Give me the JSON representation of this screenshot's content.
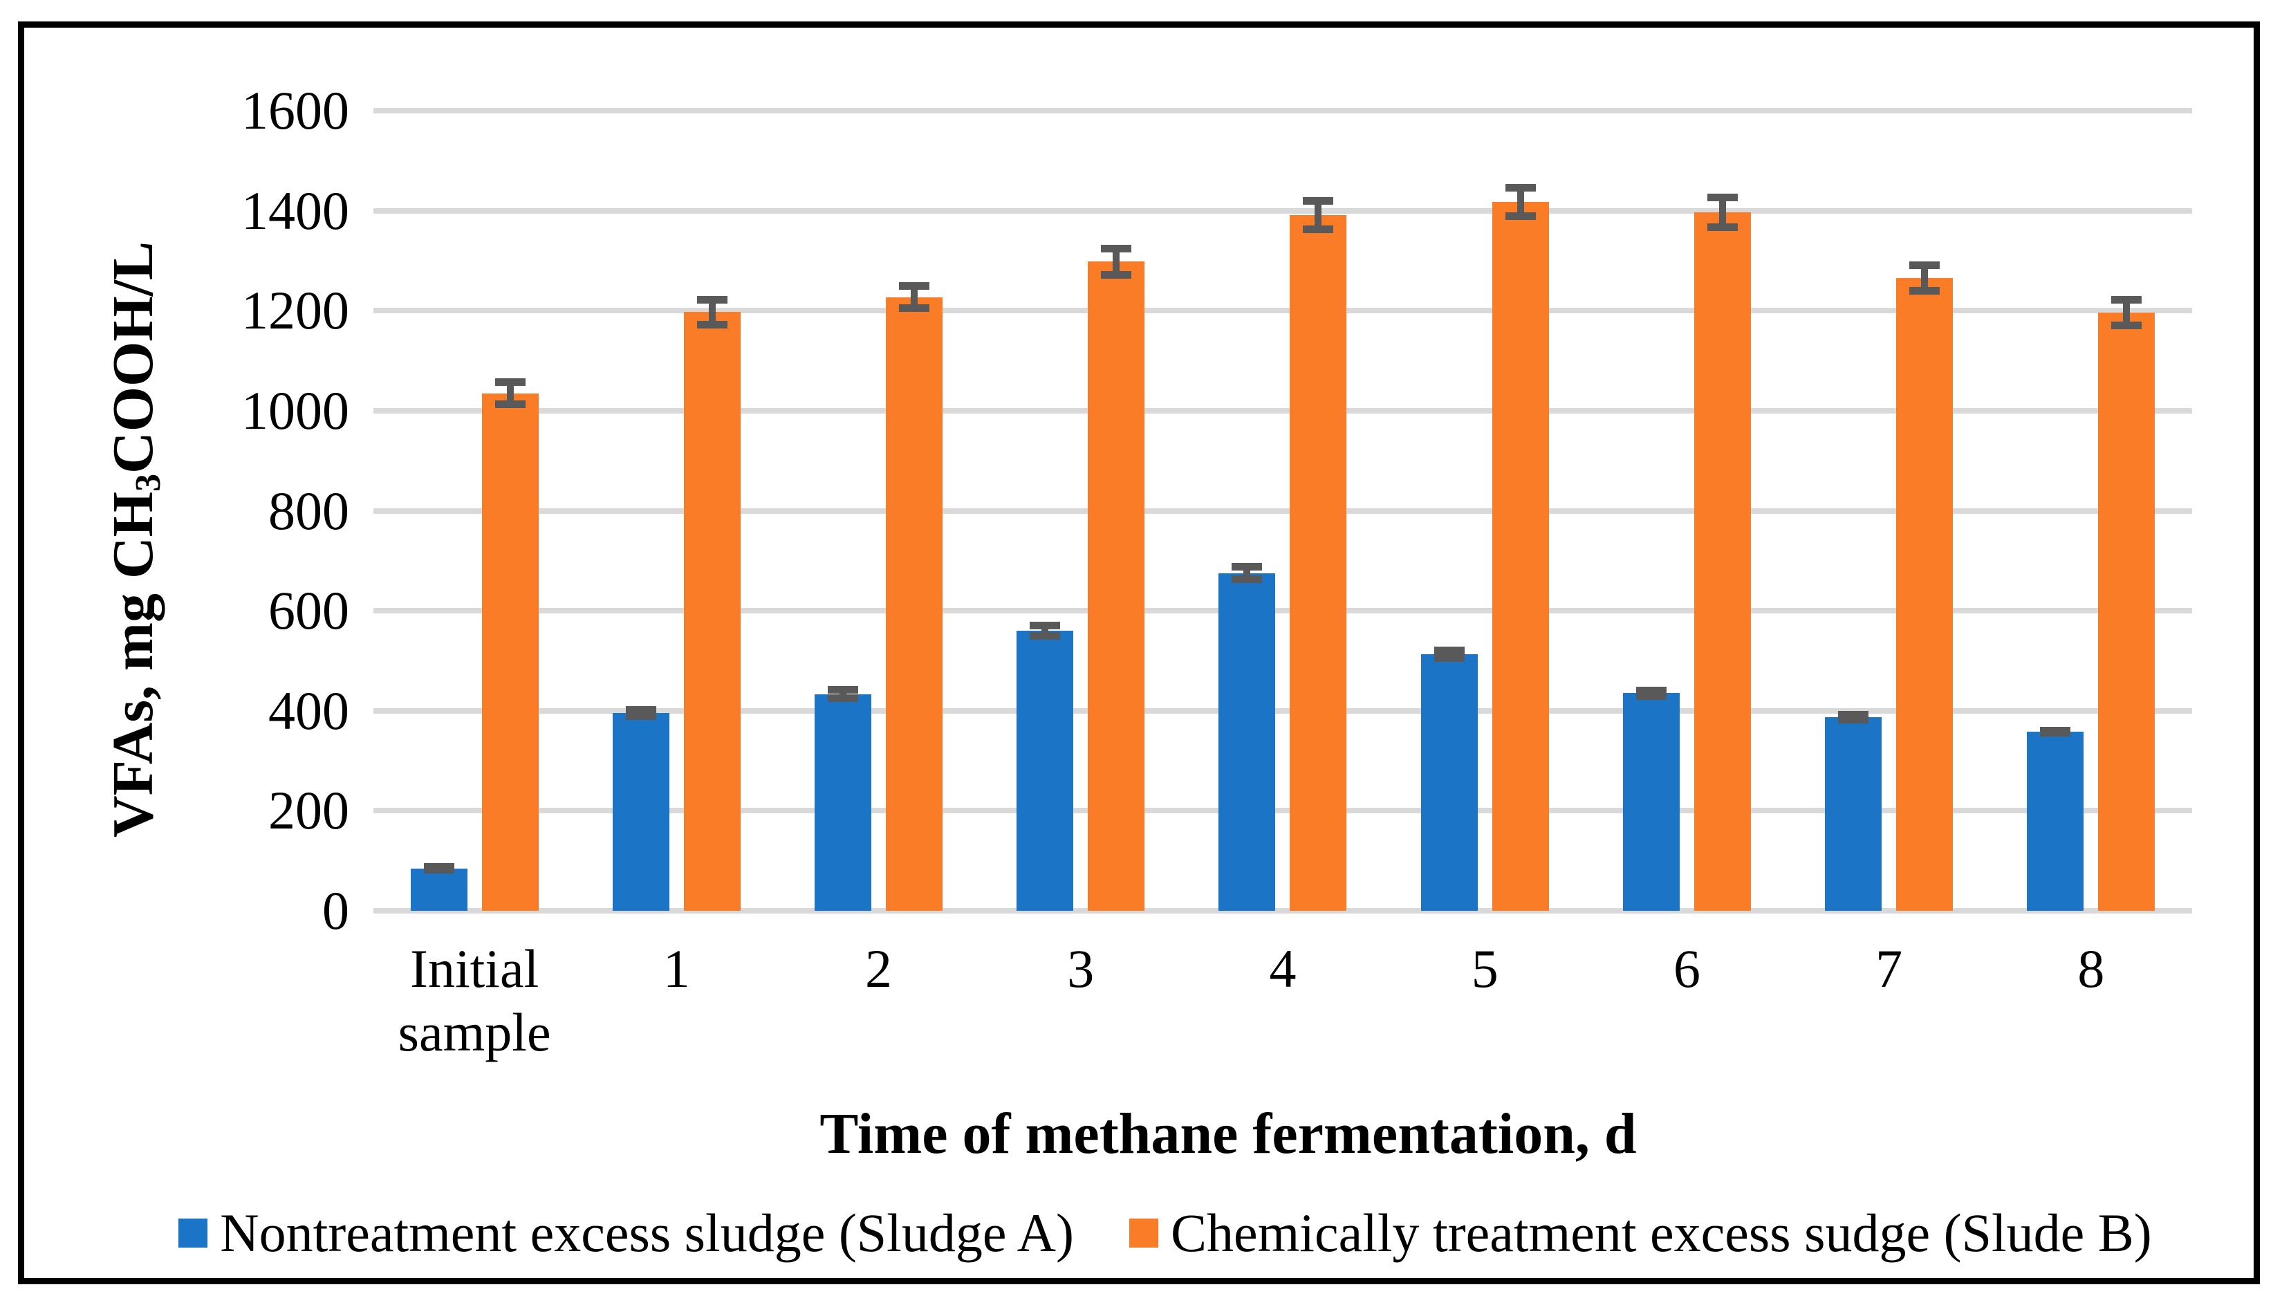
{
  "figure": {
    "background": "#FFFFFF",
    "border_color": "#000000",
    "gridline_color": "#D9D9D9",
    "error_bar_color": "#595959"
  },
  "y_axis": {
    "title_pre": "VFAs, mg CH",
    "title_sub": "3",
    "title_post": "COOH/L",
    "tick_labels": [
      "0",
      "200",
      "400",
      "600",
      "800",
      "1000",
      "1200",
      "1400",
      "1600"
    ]
  },
  "x_axis": {
    "title": "Time of methane fermentation, d",
    "tick_labels": [
      "Initial sample",
      "1",
      "2",
      "3",
      "4",
      "5",
      "6",
      "7",
      "8"
    ]
  },
  "legend": {
    "items": [
      {
        "label": "Nontreatment excess sludge (Sludge A)",
        "color": "#1B74C6"
      },
      {
        "label": "Chemically treatment excess sudge (Slude B)",
        "color": "#FB7C26"
      }
    ]
  },
  "chart_data": {
    "type": "bar",
    "title": "",
    "xlabel": "Time of methane fermentation, d",
    "ylabel": "VFAs, mg CH3COOH/L",
    "categories": [
      "Initial sample",
      "1",
      "2",
      "3",
      "4",
      "5",
      "6",
      "7",
      "8"
    ],
    "series": [
      {
        "name": "Nontreatment excess sludge (Sludge A)",
        "color": "#1B74C6",
        "values": [
          85,
          395,
          433,
          560,
          675,
          513,
          435,
          387,
          358
        ],
        "errors": [
          10,
          14,
          16,
          18,
          20,
          15,
          13,
          12,
          10
        ]
      },
      {
        "name": "Chemically treatment excess sudge (Slude B)",
        "color": "#FB7C26",
        "values": [
          1035,
          1197,
          1227,
          1298,
          1391,
          1417,
          1397,
          1265,
          1196
        ],
        "errors": [
          30,
          32,
          30,
          34,
          36,
          36,
          37,
          33,
          33
        ]
      }
    ],
    "ylim": [
      0,
      1600
    ],
    "ytick_step": 200,
    "grid": true,
    "error_bars": true,
    "legend_position": "bottom"
  }
}
